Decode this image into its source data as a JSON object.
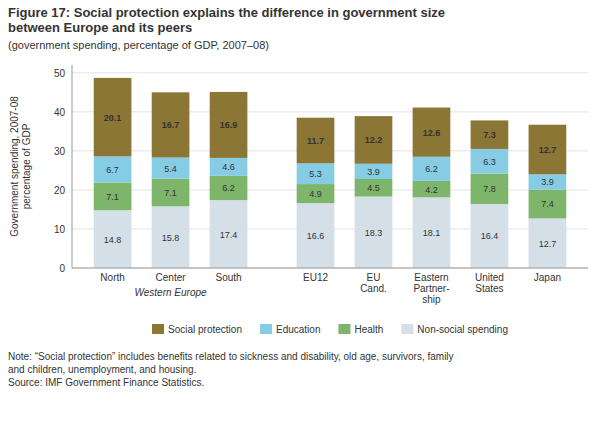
{
  "chart_data": {
    "type": "bar",
    "stacked": true,
    "title": "Figure 17: Social protection explains the difference in government size\nbetween Europe and its peers",
    "subtitle": "(government spending, percentage of GDP, 2007–08)",
    "ylabel": "Government spending, 2007-08\npercentage of GDP",
    "categories": [
      "North",
      "Center",
      "South",
      "EU12",
      "EU\nCand.",
      "Eastern\nPartner-\nship",
      "United\nStates",
      "Japan"
    ],
    "series": [
      {
        "name": "Non-social spending",
        "color": "#d4dfe8",
        "values": [
          14.8,
          15.8,
          17.4,
          16.6,
          18.3,
          18.1,
          16.4,
          12.7
        ]
      },
      {
        "name": "Health",
        "color": "#7db56a",
        "values": [
          7.1,
          7.1,
          6.2,
          4.9,
          4.5,
          4.2,
          7.8,
          7.4
        ]
      },
      {
        "name": "Education",
        "color": "#86cce4",
        "values": [
          6.7,
          5.4,
          4.6,
          5.3,
          3.9,
          6.2,
          6.3,
          3.9
        ]
      },
      {
        "name": "Social protection",
        "color": "#8b7635",
        "values": [
          20.1,
          16.7,
          16.9,
          11.7,
          12.2,
          12.6,
          7.3,
          12.7
        ]
      }
    ],
    "ylim": [
      0,
      52
    ],
    "yticks": [
      0,
      10,
      20,
      30,
      40,
      50
    ],
    "grid": true,
    "legend": "bottom",
    "data_labels": true,
    "annotations": [
      {
        "text": "Western Europe",
        "categories": [
          "North",
          "Center",
          "South"
        ]
      }
    ],
    "note": "Note: “Social protection” includes benefits related to sickness and disability, old age, survivors, family\nand children, unemployment, and housing.\nSource: IMF Government Finance Statistics."
  }
}
